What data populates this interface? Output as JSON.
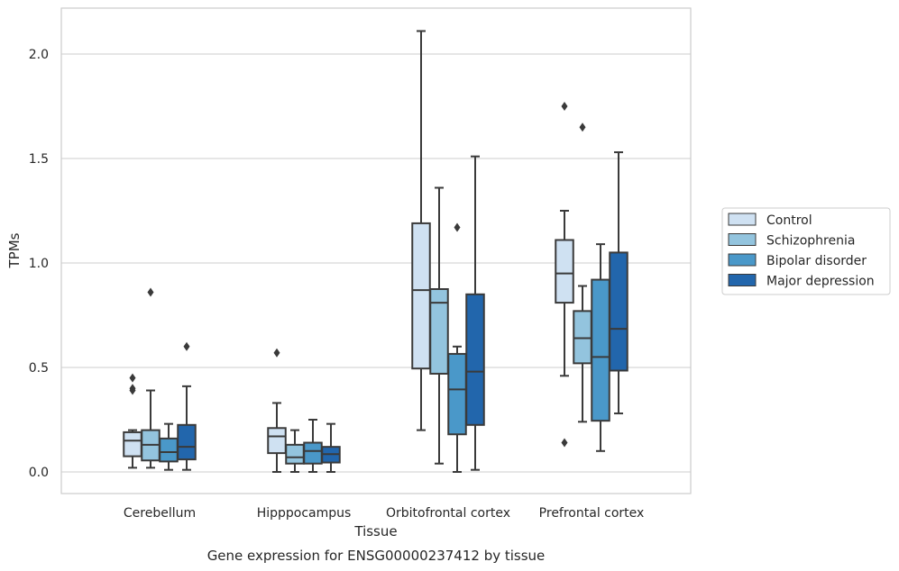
{
  "chart_data": {
    "type": "box",
    "xlabel": "Tissue",
    "ylabel": "TPMs",
    "caption": "Gene expression for ENSG00000237412 by tissue",
    "categories": [
      "Cerebellum",
      "Hipppocampus",
      "Orbitofrontal cortex",
      "Prefrontal cortex"
    ],
    "ylim": [
      -0.1,
      2.23
    ],
    "yticks": [
      0.0,
      0.5,
      1.0,
      1.5,
      2.0
    ],
    "ytick_labels": [
      "0.0",
      "0.5",
      "1.0",
      "1.5",
      "2.0"
    ],
    "grid": "horizontal",
    "legend_position": "right",
    "series": [
      {
        "name": "Control",
        "color": "#cfe1f2",
        "boxes": [
          {
            "min": 0.02,
            "q1": 0.075,
            "median": 0.15,
            "q3": 0.19,
            "max": 0.2,
            "outliers": [
              0.45,
              0.4,
              0.39
            ]
          },
          {
            "min": 0.0,
            "q1": 0.09,
            "median": 0.17,
            "q3": 0.21,
            "max": 0.33,
            "outliers": [
              0.57
            ]
          },
          {
            "min": 0.2,
            "q1": 0.495,
            "median": 0.87,
            "q3": 1.19,
            "max": 2.11,
            "outliers": []
          },
          {
            "min": 0.46,
            "q1": 0.81,
            "median": 0.95,
            "q3": 1.11,
            "max": 1.25,
            "outliers": [
              1.75,
              0.14
            ]
          }
        ]
      },
      {
        "name": "Schizophrenia",
        "color": "#93c4de",
        "boxes": [
          {
            "min": 0.02,
            "q1": 0.055,
            "median": 0.13,
            "q3": 0.2,
            "max": 0.39,
            "outliers": [
              0.86
            ]
          },
          {
            "min": 0.0,
            "q1": 0.04,
            "median": 0.07,
            "q3": 0.13,
            "max": 0.2,
            "outliers": []
          },
          {
            "min": 0.04,
            "q1": 0.47,
            "median": 0.81,
            "q3": 0.875,
            "max": 1.36,
            "outliers": []
          },
          {
            "min": 0.24,
            "q1": 0.52,
            "median": 0.64,
            "q3": 0.77,
            "max": 0.89,
            "outliers": [
              1.65
            ]
          }
        ]
      },
      {
        "name": "Bipolar disorder",
        "color": "#4a98c9",
        "boxes": [
          {
            "min": 0.01,
            "q1": 0.05,
            "median": 0.095,
            "q3": 0.16,
            "max": 0.23,
            "outliers": []
          },
          {
            "min": 0.0,
            "q1": 0.04,
            "median": 0.1,
            "q3": 0.14,
            "max": 0.25,
            "outliers": []
          },
          {
            "min": 0.0,
            "q1": 0.18,
            "median": 0.395,
            "q3": 0.565,
            "max": 0.6,
            "outliers": [
              1.17
            ]
          },
          {
            "min": 0.1,
            "q1": 0.245,
            "median": 0.55,
            "q3": 0.92,
            "max": 1.09,
            "outliers": []
          }
        ]
      },
      {
        "name": "Major depression",
        "color": "#2266ac",
        "boxes": [
          {
            "min": 0.01,
            "q1": 0.06,
            "median": 0.12,
            "q3": 0.225,
            "max": 0.41,
            "outliers": [
              0.6
            ]
          },
          {
            "min": 0.0,
            "q1": 0.045,
            "median": 0.085,
            "q3": 0.12,
            "max": 0.23,
            "outliers": []
          },
          {
            "min": 0.01,
            "q1": 0.225,
            "median": 0.48,
            "q3": 0.85,
            "max": 1.51,
            "outliers": []
          },
          {
            "min": 0.28,
            "q1": 0.485,
            "median": 0.685,
            "q3": 1.05,
            "max": 1.53,
            "outliers": []
          }
        ]
      }
    ]
  }
}
